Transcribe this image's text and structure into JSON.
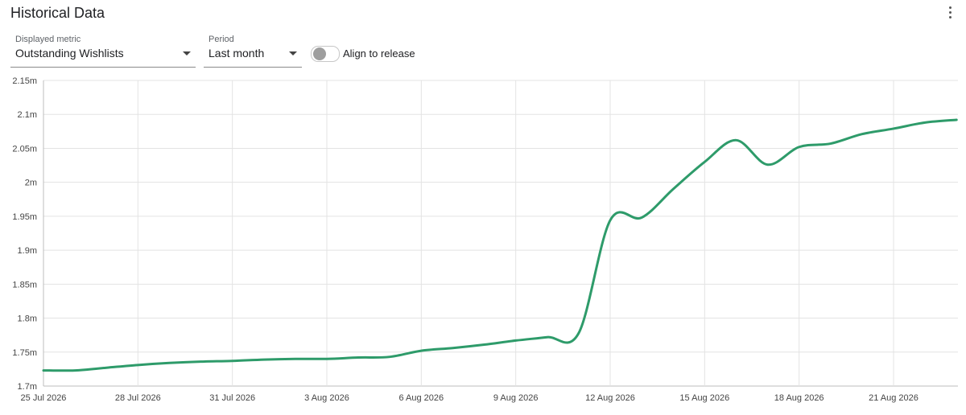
{
  "header": {
    "title": "Historical Data",
    "menu_icon": "more-vert-icon"
  },
  "controls": {
    "metric": {
      "label": "Displayed metric",
      "value": "Outstanding Wishlists"
    },
    "period": {
      "label": "Period",
      "value": "Last month"
    },
    "align_toggle": {
      "label": "Align to release",
      "checked": false
    }
  },
  "colors": {
    "line": "#2e9b6a",
    "grid": "#e3e3e3",
    "axis": "#bdbdbd"
  },
  "chart_data": {
    "type": "line",
    "title": "",
    "xlabel": "",
    "ylabel": "",
    "grid": true,
    "ylim": [
      1.7,
      2.15
    ],
    "y_ticks": [
      1.7,
      1.75,
      1.8,
      1.85,
      1.9,
      1.95,
      2.0,
      2.05,
      2.1,
      2.15
    ],
    "y_tick_labels": [
      "1.7m",
      "1.75m",
      "1.8m",
      "1.85m",
      "1.9m",
      "1.95m",
      "2m",
      "2.05m",
      "2.1m",
      "2.15m"
    ],
    "x_tick_labels": [
      "25 Jul 2026",
      "28 Jul 2026",
      "31 Jul 2026",
      "3 Aug 2026",
      "6 Aug 2026",
      "9 Aug 2026",
      "12 Aug 2026",
      "15 Aug 2026",
      "18 Aug 2026",
      "21 Aug 2026"
    ],
    "series": [
      {
        "x": [
          "25 Jul 2026",
          "26 Jul 2026",
          "27 Jul 2026",
          "28 Jul 2026",
          "29 Jul 2026",
          "30 Jul 2026",
          "31 Jul 2026",
          "1 Aug 2026",
          "2 Aug 2026",
          "3 Aug 2026",
          "4 Aug 2026",
          "5 Aug 2026",
          "6 Aug 2026",
          "7 Aug 2026",
          "8 Aug 2026",
          "9 Aug 2026",
          "10 Aug 2026",
          "11 Aug 2026",
          "12 Aug 2026",
          "13 Aug 2026",
          "14 Aug 2026",
          "15 Aug 2026",
          "16 Aug 2026",
          "17 Aug 2026",
          "18 Aug 2026",
          "19 Aug 2026",
          "20 Aug 2026",
          "21 Aug 2026",
          "22 Aug 2026",
          "23 Aug 2026"
        ],
        "values": [
          1.723,
          1.723,
          1.727,
          1.731,
          1.734,
          1.736,
          1.737,
          1.739,
          1.74,
          1.74,
          1.742,
          1.743,
          1.752,
          1.756,
          1.761,
          1.767,
          1.772,
          1.778,
          1.944,
          1.948,
          1.99,
          2.03,
          2.062,
          2.026,
          2.052,
          2.057,
          2.071,
          2.079,
          2.088,
          2.092
        ]
      }
    ]
  }
}
